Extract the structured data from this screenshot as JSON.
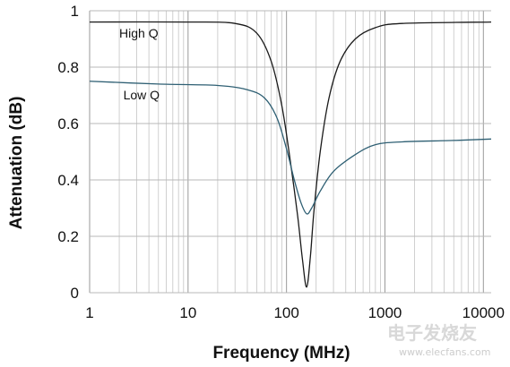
{
  "chart_data": {
    "type": "line",
    "xlabel": "Frequency (MHz)",
    "ylabel": "Attenuation (dB)",
    "x_scale": "log",
    "xlim": [
      1,
      12000
    ],
    "ylim": [
      0,
      1
    ],
    "grid": {
      "x_minor": true,
      "y_major": true
    },
    "x_ticks": [
      {
        "value": 1,
        "label": "1"
      },
      {
        "value": 10,
        "label": "10"
      },
      {
        "value": 100,
        "label": "100"
      },
      {
        "value": 1000,
        "label": "1000"
      },
      {
        "value": 10000,
        "label": "10000"
      }
    ],
    "y_ticks": [
      {
        "value": 0,
        "label": "0"
      },
      {
        "value": 0.2,
        "label": "0.2"
      },
      {
        "value": 0.4,
        "label": "0.4"
      },
      {
        "value": 0.6,
        "label": "0.6"
      },
      {
        "value": 0.8,
        "label": "0.8"
      },
      {
        "value": 1,
        "label": "1"
      }
    ],
    "series": [
      {
        "name": "High Q",
        "color": "#1a1a1a",
        "points": [
          [
            1,
            0.96
          ],
          [
            10,
            0.96
          ],
          [
            30,
            0.955
          ],
          [
            50,
            0.92
          ],
          [
            70,
            0.82
          ],
          [
            90,
            0.66
          ],
          [
            110,
            0.46
          ],
          [
            130,
            0.27
          ],
          [
            145,
            0.12
          ],
          [
            160,
            0.02
          ],
          [
            175,
            0.13
          ],
          [
            190,
            0.29
          ],
          [
            220,
            0.5
          ],
          [
            270,
            0.69
          ],
          [
            350,
            0.82
          ],
          [
            500,
            0.9
          ],
          [
            800,
            0.94
          ],
          [
            1500,
            0.955
          ],
          [
            12000,
            0.96
          ]
        ]
      },
      {
        "name": "Low Q",
        "color": "#2e5f73",
        "points": [
          [
            1,
            0.75
          ],
          [
            5,
            0.74
          ],
          [
            20,
            0.735
          ],
          [
            40,
            0.72
          ],
          [
            60,
            0.69
          ],
          [
            80,
            0.62
          ],
          [
            100,
            0.51
          ],
          [
            120,
            0.4
          ],
          [
            140,
            0.32
          ],
          [
            160,
            0.28
          ],
          [
            180,
            0.3
          ],
          [
            220,
            0.36
          ],
          [
            300,
            0.43
          ],
          [
            500,
            0.49
          ],
          [
            800,
            0.525
          ],
          [
            1500,
            0.535
          ],
          [
            5000,
            0.54
          ],
          [
            12000,
            0.545
          ]
        ]
      }
    ],
    "series_labels": [
      {
        "series": "High Q",
        "text": "High Q",
        "anchor_x": 2,
        "anchor_y": 0.905
      },
      {
        "series": "Low Q",
        "text": "Low Q",
        "anchor_x": 2.2,
        "anchor_y": 0.685
      }
    ]
  },
  "watermark": {
    "text": "电子发烧友",
    "subtext": "www.elecfans.com"
  }
}
